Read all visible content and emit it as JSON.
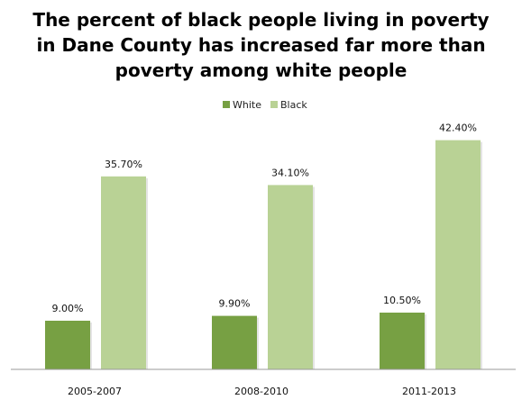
{
  "chart_data": {
    "type": "bar",
    "title_lines": [
      "The percent of black people living in poverty",
      "in Dane County has increased far more than",
      "poverty among white people"
    ],
    "categories": [
      "2005-2007",
      "2008-2010",
      "2011-2013"
    ],
    "series": [
      {
        "name": "White",
        "values": [
          9.0,
          9.9,
          10.5
        ],
        "labels": [
          "9.00%",
          "9.90%",
          "10.50%"
        ],
        "color": "#77a043"
      },
      {
        "name": "Black",
        "values": [
          35.7,
          34.1,
          42.4
        ],
        "labels": [
          "35.70%",
          "34.10%",
          "42.40%"
        ],
        "color": "#b9d295"
      }
    ],
    "ylim": [
      0,
      45
    ],
    "grid": false,
    "legend": "top-center",
    "axis_color": "#999999"
  }
}
